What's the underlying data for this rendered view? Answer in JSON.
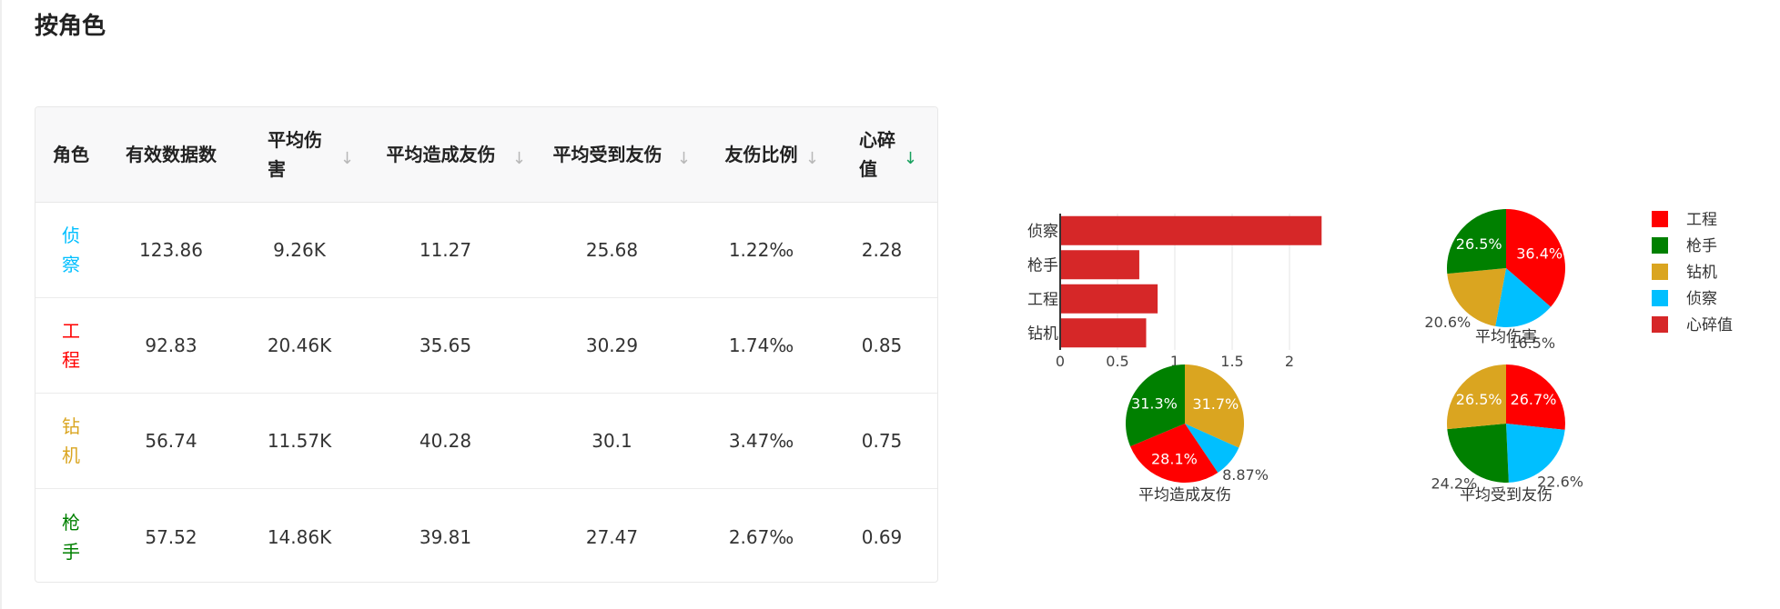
{
  "title": "按角色",
  "table": {
    "headers": [
      "角色",
      "有效数据数",
      "平均伤害",
      "平均造成友伤",
      "平均受到友伤",
      "友伤比例",
      "心碎值"
    ],
    "rows": [
      {
        "role": "侦察",
        "color": "#00bfff",
        "values": [
          "123.86",
          "9.26K",
          "11.27",
          "25.68",
          "1.22‰",
          "2.28"
        ]
      },
      {
        "role": "工程",
        "color": "#ff0000",
        "values": [
          "92.83",
          "20.46K",
          "35.65",
          "30.29",
          "1.74‰",
          "0.85"
        ]
      },
      {
        "role": "钻机",
        "color": "#daa520",
        "values": [
          "56.74",
          "11.57K",
          "40.28",
          "30.1",
          "3.47‰",
          "0.75"
        ]
      },
      {
        "role": "枪手",
        "color": "#008000",
        "values": [
          "57.52",
          "14.86K",
          "39.81",
          "27.47",
          "2.67‰",
          "0.69"
        ]
      }
    ],
    "sort_icon": "arrow-down-icon",
    "active_sort_color": "#17a05d"
  },
  "chart_data": [
    {
      "type": "bar",
      "orientation": "horizontal",
      "categories": [
        "侦察",
        "枪手",
        "工程",
        "钻机"
      ],
      "values": [
        2.28,
        0.69,
        0.85,
        0.75
      ],
      "color": "#d62728",
      "xlim": [
        0,
        2.3
      ],
      "xticks": [
        "0",
        "0.5",
        "1",
        "1.5",
        "2"
      ],
      "grid": true
    },
    {
      "type": "pie",
      "title": "平均伤害",
      "slices": [
        {
          "name": "工程",
          "value": 36.4,
          "color": "#ff0000",
          "label": "36.4%"
        },
        {
          "name": "侦察",
          "value": 16.5,
          "color": "#00bfff",
          "label": "16.5%"
        },
        {
          "name": "钻机",
          "value": 20.6,
          "color": "#daa520",
          "label": "20.6%"
        },
        {
          "name": "枪手",
          "value": 26.5,
          "color": "#008000",
          "label": "26.5%"
        }
      ]
    },
    {
      "type": "pie",
      "title": "平均造成友伤",
      "slices": [
        {
          "name": "钻机",
          "value": 31.7,
          "color": "#daa520",
          "label": "31.7%"
        },
        {
          "name": "侦察",
          "value": 8.87,
          "color": "#00bfff",
          "label": "8.87%"
        },
        {
          "name": "工程",
          "value": 28.1,
          "color": "#ff0000",
          "label": "28.1%"
        },
        {
          "name": "枪手",
          "value": 31.3,
          "color": "#008000",
          "label": "31.3%"
        }
      ]
    },
    {
      "type": "pie",
      "title": "平均受到友伤",
      "slices": [
        {
          "name": "工程",
          "value": 26.7,
          "color": "#ff0000",
          "label": "26.7%"
        },
        {
          "name": "侦察",
          "value": 22.6,
          "color": "#00bfff",
          "label": "22.6%"
        },
        {
          "name": "枪手",
          "value": 24.2,
          "color": "#008000",
          "label": "24.2%"
        },
        {
          "name": "钻机",
          "value": 26.5,
          "color": "#daa520",
          "label": "26.5%"
        }
      ]
    }
  ],
  "legend": {
    "placement": "right",
    "items": [
      {
        "name": "工程",
        "color": "#ff0000"
      },
      {
        "name": "枪手",
        "color": "#008000"
      },
      {
        "name": "钻机",
        "color": "#daa520"
      },
      {
        "name": "侦察",
        "color": "#00bfff"
      },
      {
        "name": "心碎值",
        "color": "#d62728"
      }
    ]
  }
}
